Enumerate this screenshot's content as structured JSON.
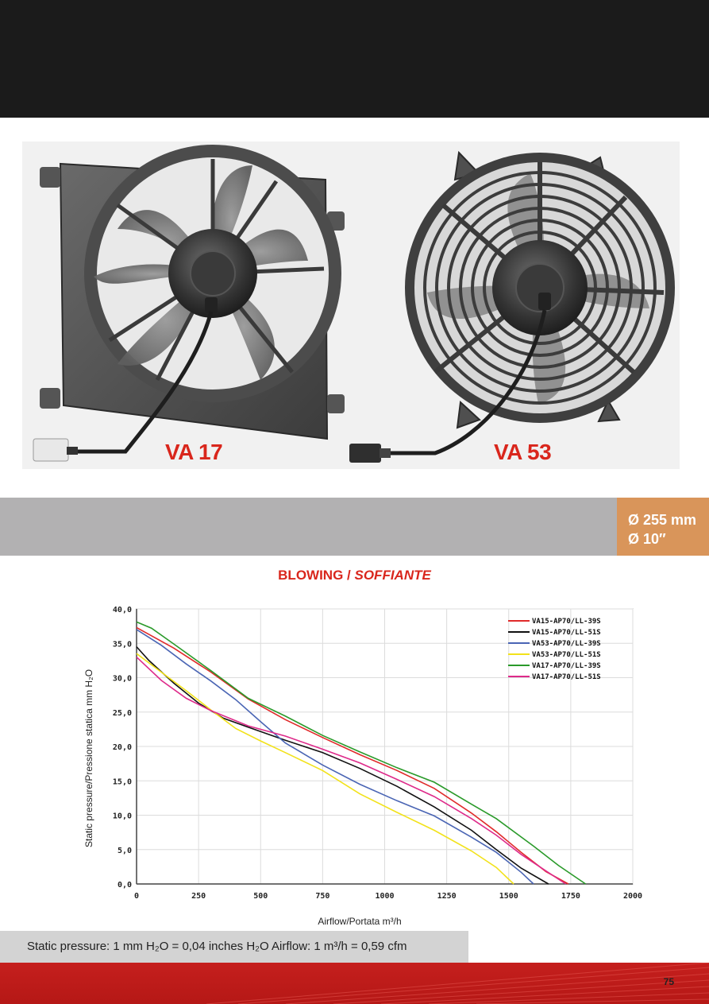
{
  "products": {
    "left_model": "VA 17",
    "right_model": "VA 53"
  },
  "diameter": {
    "metric": "Ø 255 mm",
    "imperial": "Ø 10″"
  },
  "chart_heading": {
    "main": "BLOWING /",
    "italic": "SOFFIANTE"
  },
  "footer": {
    "note": "Static pressure: 1 mm H₂O = 0,04 inches H₂O      Airflow: 1 m³/h = 0,59 cfm"
  },
  "page_number": "75",
  "colors": {
    "header": "#1b1b1b",
    "band": "#b2b1b2",
    "accent_orange": "#d9955a",
    "accent_red": "#d9261c"
  },
  "chart_data": {
    "type": "line",
    "title": "BLOWING / SOFFIANTE",
    "xlabel": "Airflow/Portata m³/h",
    "ylabel": "Static pressure/Pressione statica mm H₂O",
    "xlim": [
      0,
      2000
    ],
    "ylim": [
      0,
      40
    ],
    "x_ticks": [
      "0",
      "250",
      "500",
      "750",
      "1000",
      "1250",
      "1500",
      "1750",
      "2000"
    ],
    "y_ticks": [
      "0,0",
      "5,0",
      "10,0",
      "15,0",
      "20,0",
      "25,0",
      "30,0",
      "35,0",
      "40,0"
    ],
    "grid": true,
    "legend_position": "top-right",
    "series": [
      {
        "name": "VA15-AP70/LL-39S",
        "color": "#e02a2a",
        "points": [
          [
            0,
            37.3
          ],
          [
            150,
            34.3
          ],
          [
            300,
            30.8
          ],
          [
            450,
            26.9
          ],
          [
            600,
            23.9
          ],
          [
            750,
            21.3
          ],
          [
            900,
            18.8
          ],
          [
            1050,
            16.5
          ],
          [
            1200,
            13.9
          ],
          [
            1350,
            10.3
          ],
          [
            1450,
            7.6
          ],
          [
            1550,
            4.6
          ],
          [
            1650,
            1.8
          ],
          [
            1740,
            0
          ]
        ]
      },
      {
        "name": "VA15-AP70/LL-51S",
        "color": "#111111",
        "points": [
          [
            0,
            34.5
          ],
          [
            50,
            32.5
          ],
          [
            150,
            29.2
          ],
          [
            250,
            26.3
          ],
          [
            350,
            24.1
          ],
          [
            450,
            22.8
          ],
          [
            600,
            20.9
          ],
          [
            750,
            19.1
          ],
          [
            900,
            16.8
          ],
          [
            1050,
            14.2
          ],
          [
            1200,
            11.2
          ],
          [
            1350,
            7.8
          ],
          [
            1450,
            5.0
          ],
          [
            1550,
            2.3
          ],
          [
            1660,
            0
          ]
        ]
      },
      {
        "name": "VA53-AP70/LL-39S",
        "color": "#4a65b4",
        "points": [
          [
            0,
            37.0
          ],
          [
            100,
            34.7
          ],
          [
            200,
            32.0
          ],
          [
            300,
            29.5
          ],
          [
            400,
            26.8
          ],
          [
            500,
            23.6
          ],
          [
            600,
            20.5
          ],
          [
            750,
            17.3
          ],
          [
            900,
            14.5
          ],
          [
            1050,
            12.1
          ],
          [
            1200,
            9.9
          ],
          [
            1350,
            6.8
          ],
          [
            1450,
            4.6
          ],
          [
            1550,
            1.7
          ],
          [
            1600,
            0
          ]
        ]
      },
      {
        "name": "VA53-AP70/LL-51S",
        "color": "#f2e21a",
        "points": [
          [
            0,
            33.5
          ],
          [
            100,
            30.8
          ],
          [
            200,
            28.1
          ],
          [
            300,
            25.3
          ],
          [
            400,
            22.6
          ],
          [
            500,
            20.8
          ],
          [
            600,
            19.1
          ],
          [
            750,
            16.5
          ],
          [
            900,
            13.1
          ],
          [
            1050,
            10.4
          ],
          [
            1200,
            7.8
          ],
          [
            1350,
            4.8
          ],
          [
            1450,
            2.4
          ],
          [
            1520,
            0
          ]
        ]
      },
      {
        "name": "VA17-AP70/LL-39S",
        "color": "#2a9a2a",
        "points": [
          [
            0,
            38.1
          ],
          [
            60,
            37.2
          ],
          [
            150,
            34.9
          ],
          [
            300,
            31.0
          ],
          [
            450,
            27.0
          ],
          [
            600,
            24.4
          ],
          [
            750,
            21.6
          ],
          [
            900,
            19.2
          ],
          [
            1050,
            16.9
          ],
          [
            1200,
            14.8
          ],
          [
            1350,
            11.6
          ],
          [
            1450,
            9.5
          ],
          [
            1600,
            5.5
          ],
          [
            1700,
            2.7
          ],
          [
            1810,
            0
          ]
        ]
      },
      {
        "name": "VA17-AP70/LL-51S",
        "color": "#de2a8a",
        "points": [
          [
            0,
            33.0
          ],
          [
            100,
            29.6
          ],
          [
            200,
            27.0
          ],
          [
            300,
            25.2
          ],
          [
            450,
            23.0
          ],
          [
            600,
            21.5
          ],
          [
            750,
            19.6
          ],
          [
            900,
            17.6
          ],
          [
            1050,
            15.2
          ],
          [
            1200,
            12.7
          ],
          [
            1350,
            9.5
          ],
          [
            1450,
            7.1
          ],
          [
            1550,
            4.3
          ],
          [
            1650,
            1.9
          ],
          [
            1730,
            0
          ]
        ]
      }
    ]
  }
}
